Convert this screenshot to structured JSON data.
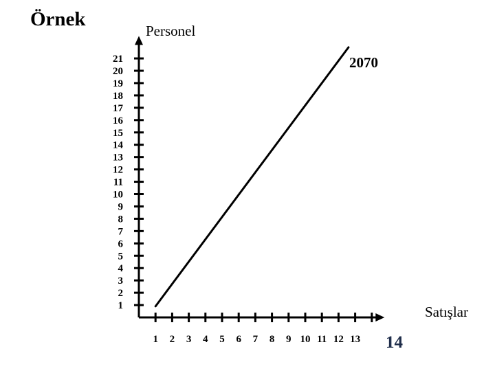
{
  "slide": {
    "title": "Örnek"
  },
  "chart_data": {
    "type": "line",
    "ylabel": "Personel",
    "xlabel": "Satışlar",
    "annotation": "2070",
    "corner_label": "14",
    "corner_label_color": "#1f2d4a",
    "x_ticks": [
      "1",
      "2",
      "3",
      "4",
      "5",
      "6",
      "7",
      "8",
      "9",
      "10",
      "11",
      "12",
      "13"
    ],
    "y_ticks": [
      "1",
      "2",
      "3",
      "4",
      "5",
      "6",
      "7",
      "8",
      "9",
      "10",
      "11",
      "12",
      "13",
      "14",
      "15",
      "16",
      "17",
      "18",
      "19",
      "20",
      "21"
    ],
    "series": [
      {
        "points": [
          {
            "x": 1.0,
            "y": 0.9
          },
          {
            "x": 12.6,
            "y": 21.9
          }
        ],
        "color": "#000000"
      }
    ],
    "xlim": [
      0,
      14.6
    ],
    "ylim": [
      0,
      22.6
    ],
    "grid": false
  }
}
